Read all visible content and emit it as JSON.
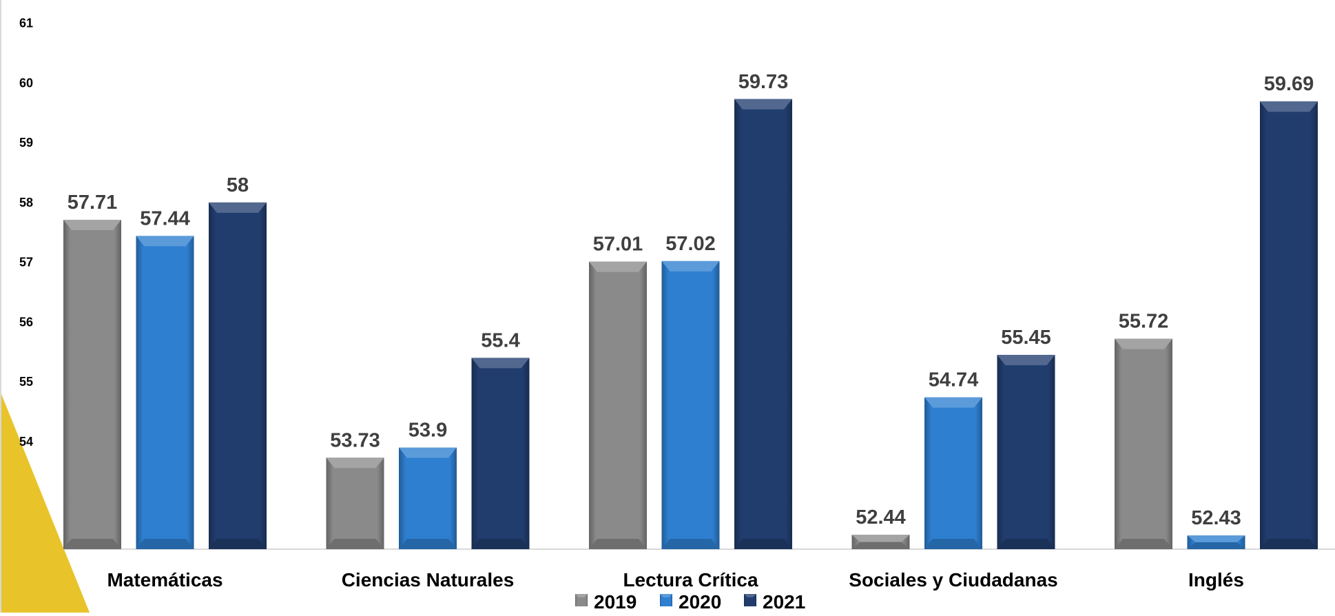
{
  "chart_data": {
    "type": "bar",
    "categories": [
      "Matemáticas",
      "Ciencias Naturales",
      "Lectura Crítica",
      "Sociales y Ciudadanas",
      "Inglés"
    ],
    "series": [
      {
        "name": "2019",
        "values": [
          57.71,
          53.73,
          57.01,
          52.44,
          55.72
        ],
        "color": "#8a8a8a"
      },
      {
        "name": "2020",
        "values": [
          57.44,
          53.9,
          57.02,
          54.74,
          52.43
        ],
        "color": "#2e7fd0"
      },
      {
        "name": "2021",
        "values": [
          58,
          55.4,
          59.73,
          55.45,
          59.69
        ],
        "color": "#213d6e"
      }
    ],
    "data_labels": [
      [
        "57.71",
        "53.73",
        "57.01",
        "52.44",
        "55.72"
      ],
      [
        "57.44",
        "53.9",
        "57.02",
        "54.74",
        "52.43"
      ],
      [
        "58",
        "55.4",
        "59.73",
        "55.45",
        "59.69"
      ]
    ],
    "y_ticks": [
      "54",
      "55",
      "56",
      "57",
      "58",
      "59",
      "60",
      "61"
    ],
    "ylim": [
      52.2,
      61
    ],
    "grid": false,
    "legend_position": "bottom",
    "accent_colors": {
      "corner_decoration": "#e8c42a",
      "axis_line": "#d9d9d9",
      "label_text": "#3f3f3f"
    }
  }
}
